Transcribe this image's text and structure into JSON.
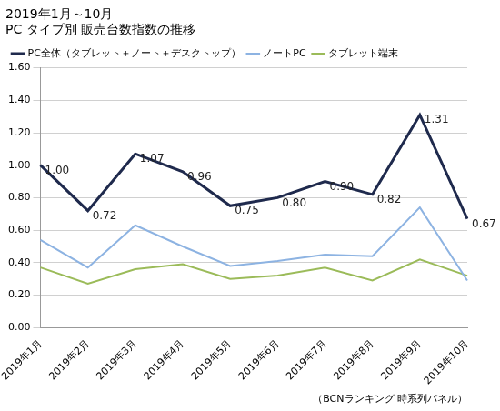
{
  "chart_data": {
    "type": "line",
    "title": "2019年1月～10月",
    "subtitle": "PC タイプ別 販売台数指数の推移",
    "annotations": [
      "（BCNランキング 時系列パネル）"
    ],
    "categories": [
      "2019年1月",
      "2019年2月",
      "2019年3月",
      "2019年4月",
      "2019年5月",
      "2019年6月",
      "2019年7月",
      "2019年8月",
      "2019年9月",
      "2019年10月"
    ],
    "series": [
      {
        "name": "PC全体（タブレット＋ノート＋デスクトップ）",
        "color": "#1f2a4d",
        "values": [
          1.0,
          0.72,
          1.07,
          0.96,
          0.75,
          0.8,
          0.9,
          0.82,
          1.31,
          0.67
        ],
        "data_labels": true,
        "value_labels": [
          "1.00",
          "0.72",
          "1.07",
          "0.96",
          "0.75",
          "0.80",
          "0.90",
          "0.82",
          "1.31",
          "0.67"
        ]
      },
      {
        "name": "ノートPC",
        "color": "#8db3e2",
        "values": [
          0.54,
          0.37,
          0.63,
          0.5,
          0.38,
          0.41,
          0.45,
          0.44,
          0.74,
          0.29
        ]
      },
      {
        "name": "タブレット端末",
        "color": "#9bbb59",
        "values": [
          0.37,
          0.27,
          0.36,
          0.39,
          0.3,
          0.32,
          0.37,
          0.29,
          0.42,
          0.32
        ]
      }
    ],
    "ylim": [
      0,
      1.6
    ],
    "yticks": [
      {
        "value": 0,
        "label": "0.00"
      },
      {
        "value": 0.2,
        "label": "0.20"
      },
      {
        "value": 0.4,
        "label": "0.40"
      },
      {
        "value": 0.6,
        "label": "0.60"
      },
      {
        "value": 0.8,
        "label": "0.80"
      },
      {
        "value": 1.0,
        "label": "1.00"
      },
      {
        "value": 1.2,
        "label": "1.20"
      },
      {
        "value": 1.4,
        "label": "1.40"
      },
      {
        "value": 1.6,
        "label": "1.60"
      }
    ],
    "grid": true,
    "legend": "upper left"
  }
}
